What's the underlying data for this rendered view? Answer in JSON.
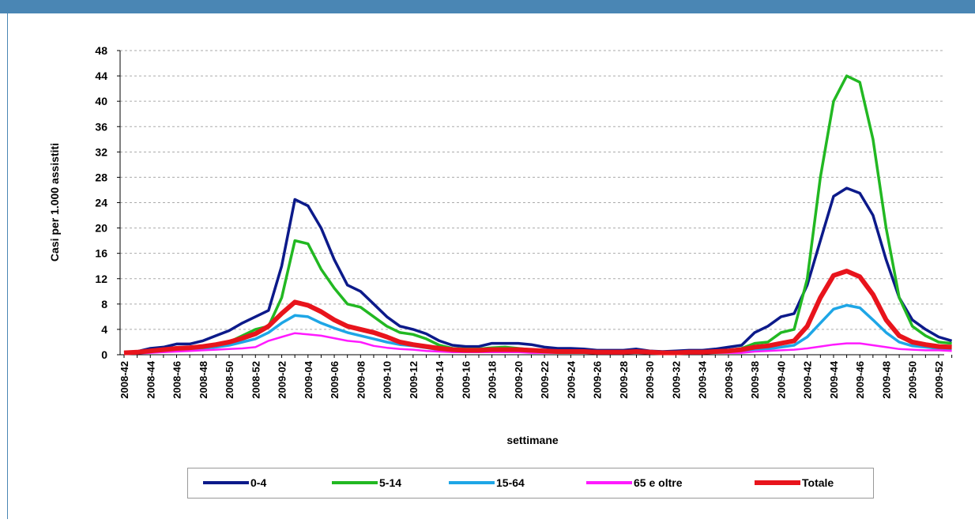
{
  "chart_data": {
    "type": "line",
    "ylabel": "Casi per 1.000 assistiti",
    "xlabel": "settimane",
    "categories": [
      "2008-42",
      null,
      "2008-44",
      null,
      "2008-46",
      null,
      "2008-48",
      null,
      "2008-50",
      null,
      "2008-52",
      null,
      "2009-02",
      null,
      "2009-04",
      null,
      "2009-06",
      null,
      "2009-08",
      null,
      "2009-10",
      null,
      "2009-12",
      null,
      "2009-14",
      null,
      "2009-16",
      null,
      "2009-18",
      null,
      "2009-20",
      null,
      "2009-22",
      null,
      "2009-24",
      null,
      "2009-26",
      null,
      "2009-28",
      null,
      "2009-30",
      null,
      "2009-32",
      null,
      "2009-34",
      null,
      "2009-36",
      null,
      "2009-38",
      null,
      "2009-40",
      null,
      "2009-42",
      null,
      "2009-44",
      null,
      "2009-46",
      null,
      "2009-48",
      null,
      "2009-50",
      null,
      "2009-52",
      null
    ],
    "ylim": [
      0,
      48
    ],
    "yticks": [
      0,
      4,
      8,
      12,
      16,
      20,
      24,
      28,
      32,
      36,
      40,
      44,
      48
    ],
    "grid": true,
    "series": [
      {
        "name": "0-4",
        "color": "#0c1a8a",
        "values": [
          0.3,
          0.5,
          1.0,
          1.2,
          1.7,
          1.7,
          2.2,
          3.0,
          3.8,
          5.0,
          6.0,
          7,
          14,
          24.5,
          23.5,
          20,
          15,
          11,
          10,
          8,
          6,
          4.5,
          4,
          3.3,
          2.2,
          1.5,
          1.3,
          1.3,
          1.8,
          1.8,
          1.8,
          1.6,
          1.2,
          1.0,
          1.0,
          0.9,
          0.7,
          0.7,
          0.7,
          0.9,
          0.6,
          0.5,
          0.6,
          0.7,
          0.7,
          0.9,
          1.2,
          1.5,
          3.5,
          4.5,
          6,
          6.5,
          11,
          18,
          25,
          26.3,
          25.5,
          22,
          15,
          9,
          5.5,
          4,
          2.8,
          2.2
        ]
      },
      {
        "name": "5-14",
        "color": "#22b822",
        "values": [
          0.2,
          0.3,
          0.5,
          0.7,
          0.9,
          1.0,
          1.2,
          1.5,
          2.0,
          3.0,
          4.0,
          4.5,
          9,
          18,
          17.5,
          13.5,
          10.5,
          8,
          7.5,
          6,
          4.5,
          3.5,
          3.2,
          2.5,
          1.5,
          1.0,
          0.9,
          0.9,
          1.1,
          1.2,
          1.0,
          0.8,
          0.6,
          0.5,
          0.5,
          0.5,
          0.4,
          0.4,
          0.4,
          0.5,
          0.4,
          0.3,
          0.3,
          0.4,
          0.4,
          0.5,
          0.7,
          1.0,
          1.8,
          2.0,
          3.5,
          4.0,
          12,
          28,
          40,
          44,
          43,
          34,
          20,
          9,
          4.5,
          3,
          2,
          1.8
        ]
      },
      {
        "name": "15-64",
        "color": "#1ea6e6",
        "values": [
          0.2,
          0.3,
          0.4,
          0.5,
          0.7,
          0.8,
          1.0,
          1.2,
          1.5,
          2.0,
          2.5,
          3.5,
          5,
          6.2,
          6,
          5,
          4.2,
          3.5,
          3,
          2.5,
          2,
          1.6,
          1.4,
          1.1,
          0.8,
          0.7,
          0.6,
          0.6,
          0.7,
          0.7,
          0.7,
          0.6,
          0.5,
          0.4,
          0.4,
          0.4,
          0.3,
          0.3,
          0.3,
          0.4,
          0.3,
          0.3,
          0.3,
          0.3,
          0.3,
          0.4,
          0.5,
          0.6,
          0.8,
          0.9,
          1.2,
          1.5,
          2.8,
          5,
          7.2,
          7.8,
          7.4,
          5.5,
          3.5,
          2,
          1.4,
          1.2,
          1.0,
          0.9
        ]
      },
      {
        "name": "65 e oltre",
        "color": "#ff1aff",
        "values": [
          0.1,
          0.2,
          0.3,
          0.4,
          0.5,
          0.6,
          0.7,
          0.8,
          0.9,
          1.0,
          1.2,
          2.2,
          2.8,
          3.4,
          3.2,
          3.0,
          2.6,
          2.2,
          2.0,
          1.4,
          1.1,
          0.9,
          0.8,
          0.6,
          0.5,
          0.4,
          0.4,
          0.4,
          0.4,
          0.4,
          0.4,
          0.3,
          0.3,
          0.3,
          0.3,
          0.3,
          0.2,
          0.2,
          0.2,
          0.3,
          0.2,
          0.2,
          0.2,
          0.2,
          0.2,
          0.3,
          0.3,
          0.3,
          0.5,
          0.6,
          0.7,
          0.8,
          1.0,
          1.3,
          1.6,
          1.8,
          1.8,
          1.5,
          1.2,
          0.9,
          0.8,
          0.7,
          0.7,
          0.6
        ]
      },
      {
        "name": "Totale",
        "color": "#e8141c",
        "values": [
          0.3,
          0.4,
          0.6,
          0.8,
          1.0,
          1.1,
          1.3,
          1.6,
          2.0,
          2.6,
          3.3,
          4.5,
          6.5,
          8.3,
          7.8,
          6.8,
          5.5,
          4.5,
          4.0,
          3.5,
          2.8,
          2.0,
          1.6,
          1.3,
          1.0,
          0.8,
          0.7,
          0.7,
          0.8,
          0.8,
          0.8,
          0.7,
          0.6,
          0.5,
          0.5,
          0.5,
          0.4,
          0.4,
          0.4,
          0.5,
          0.4,
          0.3,
          0.3,
          0.4,
          0.4,
          0.5,
          0.6,
          0.8,
          1.2,
          1.4,
          1.8,
          2.2,
          4.5,
          9,
          12.5,
          13.2,
          12.3,
          9.5,
          5.5,
          3,
          2,
          1.6,
          1.3,
          1.2
        ]
      }
    ]
  }
}
